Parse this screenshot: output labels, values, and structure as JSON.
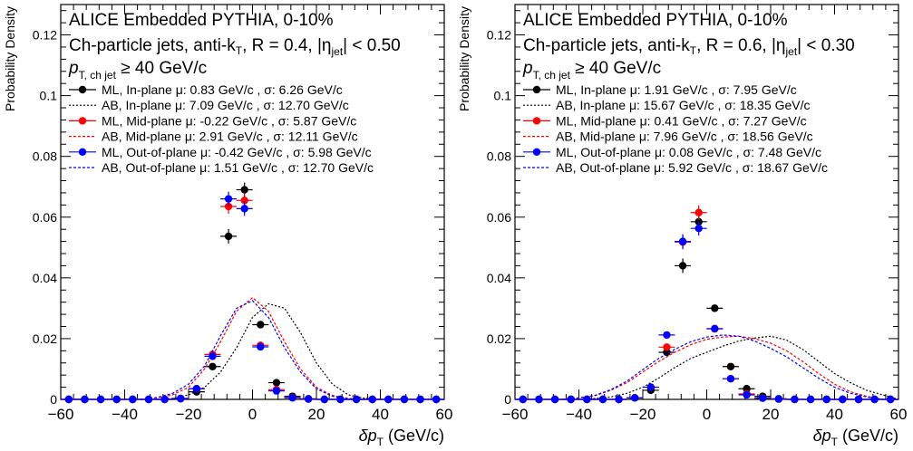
{
  "chart_data": [
    {
      "type": "scatter",
      "ylabel": "Probability Density",
      "xlabel_main": "δp",
      "xlabel_sub": "T",
      "xlabel_unit": "(GeV/c)",
      "xlim": [
        -60,
        60
      ],
      "ylim": [
        0,
        0.13
      ],
      "xticks": [
        -60,
        -40,
        -20,
        0,
        20,
        40,
        60
      ],
      "yticks": [
        0,
        0.02,
        0.04,
        0.06,
        0.08,
        0.1,
        0.12
      ],
      "ytick_labels": [
        "0",
        "0.02",
        "0.04",
        "0.06",
        "0.08",
        "0.1",
        "0.12"
      ],
      "annotations": {
        "line1": "ALICE Embedded PYTHIA, 0-10%",
        "line2_pre": "Ch-particle jets, anti-k",
        "line2_sub": "T",
        "line2_post": ", R = 0.4, |η",
        "line2_sub2": "jet",
        "line2_end": "| < 0.50",
        "line3_pre": "p",
        "line3_sub": "T, ch jet",
        "line3_post": " ≥ 40 GeV/c"
      },
      "series": [
        {
          "name": "ML, In-plane μ: 0.83 GeV/c , σ: 6.26 GeV/c",
          "kind": "points",
          "color": "#000000",
          "x": [
            -57.5,
            -52.5,
            -47.5,
            -42.5,
            -37.5,
            -32.5,
            -27.5,
            -22.5,
            -17.5,
            -12.5,
            -7.5,
            -2.5,
            2.5,
            7.5,
            12.5,
            17.5,
            22.5,
            27.5,
            32.5,
            37.5,
            42.5,
            47.5,
            52.5,
            57.5
          ],
          "y": [
            0,
            0,
            0,
            0,
            0,
            0,
            0,
            0.0002,
            0.0025,
            0.0108,
            0.0537,
            0.069,
            0.0246,
            0.0055,
            0.001,
            0.0002,
            0,
            0,
            0,
            0,
            0,
            0,
            0,
            0
          ]
        },
        {
          "name": "AB, In-plane μ: 7.09 GeV/c , σ: 12.70 GeV/c",
          "kind": "line",
          "style": "dotted",
          "color": "#000000",
          "x": [
            -30,
            -25,
            -20,
            -15,
            -10,
            -5,
            0,
            5,
            10,
            15,
            20,
            25,
            30,
            35,
            40
          ],
          "y": [
            0,
            0.0003,
            0.0015,
            0.004,
            0.009,
            0.017,
            0.027,
            0.0315,
            0.03,
            0.022,
            0.012,
            0.005,
            0.0015,
            0.0004,
            0
          ]
        },
        {
          "name": "ML, Mid-plane μ: -0.22 GeV/c , σ: 5.87 GeV/c",
          "kind": "points",
          "color": "#ff0000",
          "x": [
            -57.5,
            -52.5,
            -47.5,
            -42.5,
            -37.5,
            -32.5,
            -27.5,
            -22.5,
            -17.5,
            -12.5,
            -7.5,
            -2.5,
            2.5,
            7.5,
            12.5,
            17.5,
            22.5,
            27.5,
            32.5,
            37.5,
            42.5,
            47.5,
            52.5,
            57.5
          ],
          "y": [
            0,
            0,
            0,
            0,
            0,
            0,
            0,
            0.0003,
            0.0035,
            0.0148,
            0.0635,
            0.0655,
            0.0178,
            0.0032,
            0.0006,
            0.0001,
            0,
            0,
            0,
            0,
            0,
            0,
            0,
            0
          ]
        },
        {
          "name": "AB, Mid-plane μ: 2.91 GeV/c , σ: 12.11 GeV/c",
          "kind": "line",
          "style": "dashed",
          "color": "#ff0000",
          "x": [
            -35,
            -30,
            -25,
            -20,
            -15,
            -10,
            -5,
            0,
            5,
            10,
            15,
            20,
            25,
            30,
            35
          ],
          "y": [
            0,
            0.0005,
            0.0015,
            0.004,
            0.01,
            0.019,
            0.029,
            0.0335,
            0.029,
            0.019,
            0.01,
            0.004,
            0.0013,
            0.0003,
            0
          ]
        },
        {
          "name": "ML, Out-of-plane μ: -0.42 GeV/c , σ: 5.98 GeV/c",
          "kind": "points",
          "color": "#0000ff",
          "x": [
            -57.5,
            -52.5,
            -47.5,
            -42.5,
            -37.5,
            -32.5,
            -27.5,
            -22.5,
            -17.5,
            -12.5,
            -7.5,
            -2.5,
            2.5,
            7.5,
            12.5,
            17.5,
            22.5,
            27.5,
            32.5,
            37.5,
            42.5,
            47.5,
            52.5,
            57.5
          ],
          "y": [
            0,
            0,
            0,
            0,
            0,
            0,
            0,
            0.0003,
            0.0035,
            0.0142,
            0.066,
            0.0628,
            0.0173,
            0.0028,
            0.0005,
            0.0001,
            0,
            0,
            0,
            0,
            0,
            0,
            0,
            0
          ]
        },
        {
          "name": "AB, Out-of-plane μ: 1.51 GeV/c , σ: 12.70 GeV/c",
          "kind": "line",
          "style": "dashed",
          "color": "#0000ff",
          "x": [
            -35,
            -30,
            -25,
            -20,
            -15,
            -10,
            -5,
            0,
            5,
            10,
            15,
            20,
            25,
            30,
            35
          ],
          "y": [
            0,
            0.0006,
            0.002,
            0.005,
            0.011,
            0.021,
            0.03,
            0.0325,
            0.027,
            0.017,
            0.009,
            0.0035,
            0.001,
            0.0002,
            0
          ]
        }
      ]
    },
    {
      "type": "scatter",
      "ylabel": "Probability Density",
      "xlabel_main": "δp",
      "xlabel_sub": "T",
      "xlabel_unit": "(GeV/c)",
      "xlim": [
        -60,
        60
      ],
      "ylim": [
        0,
        0.13
      ],
      "xticks": [
        -60,
        -40,
        -20,
        0,
        20,
        40,
        60
      ],
      "yticks": [
        0,
        0.02,
        0.04,
        0.06,
        0.08,
        0.1,
        0.12
      ],
      "ytick_labels": [
        "0",
        "0.02",
        "0.04",
        "0.06",
        "0.08",
        "0.1",
        "0.12"
      ],
      "annotations": {
        "line1": "ALICE Embedded PYTHIA, 0-10%",
        "line2_pre": "Ch-particle jets, anti-k",
        "line2_sub": "T",
        "line2_post": ", R = 0.6, |η",
        "line2_sub2": "jet",
        "line2_end": "| < 0.30",
        "line3_pre": "p",
        "line3_sub": "T, ch jet",
        "line3_post": " ≥ 40 GeV/c"
      },
      "series": [
        {
          "name": "ML, In-plane μ: 1.91 GeV/c , σ: 7.95 GeV/c",
          "kind": "points",
          "color": "#000000",
          "x": [
            -57.5,
            -52.5,
            -47.5,
            -42.5,
            -37.5,
            -32.5,
            -27.5,
            -22.5,
            -17.5,
            -12.5,
            -7.5,
            -2.5,
            2.5,
            7.5,
            12.5,
            17.5,
            22.5,
            27.5,
            32.5,
            37.5,
            42.5,
            47.5,
            52.5,
            57.5
          ],
          "y": [
            0,
            0,
            0,
            0,
            0,
            0,
            0,
            0.0005,
            0.003,
            0.0155,
            0.044,
            0.0585,
            0.03,
            0.0108,
            0.0035,
            0.001,
            0.0002,
            0,
            0,
            0,
            0,
            0,
            0,
            0
          ]
        },
        {
          "name": "AB, In-plane μ: 15.67 GeV/c , σ: 18.35 GeV/c",
          "kind": "line",
          "style": "dotted",
          "color": "#000000",
          "x": [
            -40,
            -35,
            -30,
            -25,
            -20,
            -15,
            -10,
            -5,
            0,
            5,
            10,
            15,
            20,
            25,
            30,
            35,
            40,
            45,
            50,
            55,
            60
          ],
          "y": [
            0,
            0.0003,
            0.0008,
            0.002,
            0.004,
            0.007,
            0.0105,
            0.0135,
            0.0155,
            0.0175,
            0.0192,
            0.0202,
            0.0208,
            0.0195,
            0.0165,
            0.0125,
            0.0085,
            0.0055,
            0.003,
            0.0015,
            0
          ]
        },
        {
          "name": "ML, Mid-plane μ: 0.41 GeV/c , σ: 7.27 GeV/c",
          "kind": "points",
          "color": "#ff0000",
          "x": [
            -57.5,
            -52.5,
            -47.5,
            -42.5,
            -37.5,
            -32.5,
            -27.5,
            -22.5,
            -17.5,
            -12.5,
            -7.5,
            -2.5,
            2.5,
            7.5,
            12.5,
            17.5,
            22.5,
            27.5,
            32.5,
            37.5,
            42.5,
            47.5,
            52.5,
            57.5
          ],
          "y": [
            0,
            0,
            0,
            0,
            0,
            0,
            0,
            0.0005,
            0.004,
            0.0172,
            0.0518,
            0.0615,
            0.0232,
            0.0068,
            0.0018,
            0.0005,
            0.0001,
            0,
            0,
            0,
            0,
            0,
            0,
            0
          ]
        },
        {
          "name": "AB, Mid-plane μ: 7.96 GeV/c , σ: 18.56 GeV/c",
          "kind": "line",
          "style": "dashed",
          "color": "#ff0000",
          "x": [
            -45,
            -40,
            -35,
            -30,
            -25,
            -20,
            -15,
            -10,
            -5,
            0,
            5,
            10,
            15,
            20,
            25,
            30,
            35,
            40,
            45,
            50,
            55
          ],
          "y": [
            0,
            0.0005,
            0.0012,
            0.003,
            0.0055,
            0.009,
            0.0125,
            0.0155,
            0.018,
            0.0198,
            0.0205,
            0.0208,
            0.02,
            0.0185,
            0.016,
            0.0125,
            0.0085,
            0.005,
            0.0025,
            0.001,
            0
          ]
        },
        {
          "name": "ML, Out-of-plane μ: 0.08 GeV/c , σ: 7.48 GeV/c",
          "kind": "points",
          "color": "#0000ff",
          "x": [
            -57.5,
            -52.5,
            -47.5,
            -42.5,
            -37.5,
            -32.5,
            -27.5,
            -22.5,
            -17.5,
            -12.5,
            -7.5,
            -2.5,
            2.5,
            7.5,
            12.5,
            17.5,
            22.5,
            27.5,
            32.5,
            37.5,
            42.5,
            47.5,
            52.5,
            57.5
          ],
          "y": [
            0,
            0,
            0,
            0,
            0,
            0,
            0,
            0.0005,
            0.004,
            0.0212,
            0.052,
            0.0563,
            0.0233,
            0.0068,
            0.0015,
            0.0004,
            0.0001,
            0,
            0,
            0,
            0,
            0,
            0,
            0
          ]
        },
        {
          "name": "AB, Out-of-plane μ: 5.92 GeV/c , σ: 18.67 GeV/c",
          "kind": "line",
          "style": "dashed",
          "color": "#0000ff",
          "x": [
            -45,
            -40,
            -35,
            -30,
            -25,
            -20,
            -15,
            -10,
            -5,
            0,
            5,
            10,
            15,
            20,
            25,
            30,
            35,
            40,
            45,
            50,
            55
          ],
          "y": [
            0,
            0.0005,
            0.0013,
            0.0032,
            0.006,
            0.0098,
            0.0135,
            0.0165,
            0.019,
            0.0205,
            0.0212,
            0.0208,
            0.0192,
            0.0168,
            0.014,
            0.0105,
            0.007,
            0.004,
            0.002,
            0.0008,
            0
          ]
        }
      ]
    }
  ]
}
